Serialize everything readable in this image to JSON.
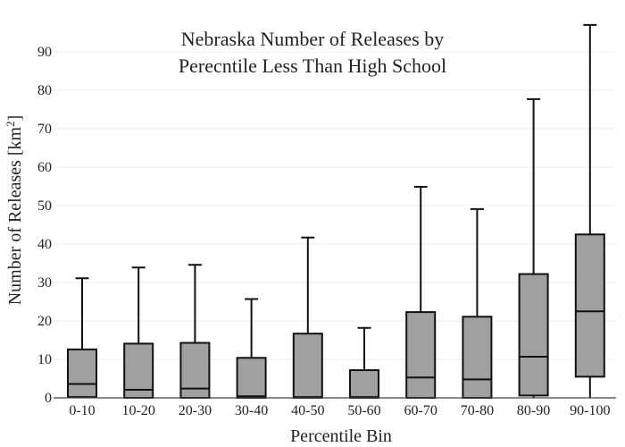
{
  "chart_data": {
    "type": "box",
    "title_lines": [
      "Nebraska Number of Releases by",
      "Perecntile Less Than High School"
    ],
    "xlabel": "Percentile Bin",
    "ylabel": "Number of Releases  [km",
    "ylabel_sup": "2",
    "ylabel_end": "]",
    "ylim": [
      0,
      98
    ],
    "yticks": [
      0,
      10,
      20,
      30,
      40,
      50,
      60,
      70,
      80,
      90
    ],
    "grid": true,
    "colors": {
      "box_fill": "#a0a0a0",
      "stroke": "#111111"
    },
    "categories": [
      "0-10",
      "10-20",
      "20-30",
      "30-40",
      "40-50",
      "50-60",
      "60-70",
      "70-80",
      "80-90",
      "90-100"
    ],
    "boxes": [
      {
        "min": 0,
        "q1": 0.2,
        "median": 3.6,
        "q3": 12.6,
        "max": 31.1
      },
      {
        "min": 0,
        "q1": 0,
        "median": 2.1,
        "q3": 14.1,
        "max": 33.9
      },
      {
        "min": 0,
        "q1": 0,
        "median": 2.4,
        "q3": 14.3,
        "max": 34.6
      },
      {
        "min": 0,
        "q1": 0,
        "median": 0.4,
        "q3": 10.4,
        "max": 25.7
      },
      {
        "min": 0,
        "q1": 0,
        "median": 0.2,
        "q3": 16.7,
        "max": 41.7
      },
      {
        "min": 0,
        "q1": 0,
        "median": 0.2,
        "q3": 7.2,
        "max": 18.2
      },
      {
        "min": 0,
        "q1": 0,
        "median": 5.3,
        "q3": 22.3,
        "max": 54.9
      },
      {
        "min": 0,
        "q1": 0,
        "median": 4.8,
        "q3": 21.1,
        "max": 49.1
      },
      {
        "min": 0,
        "q1": 0.6,
        "median": 10.7,
        "q3": 32.2,
        "max": 77.7
      },
      {
        "min": 0,
        "q1": 5.5,
        "median": 22.5,
        "q3": 42.5,
        "max": 97
      }
    ]
  }
}
